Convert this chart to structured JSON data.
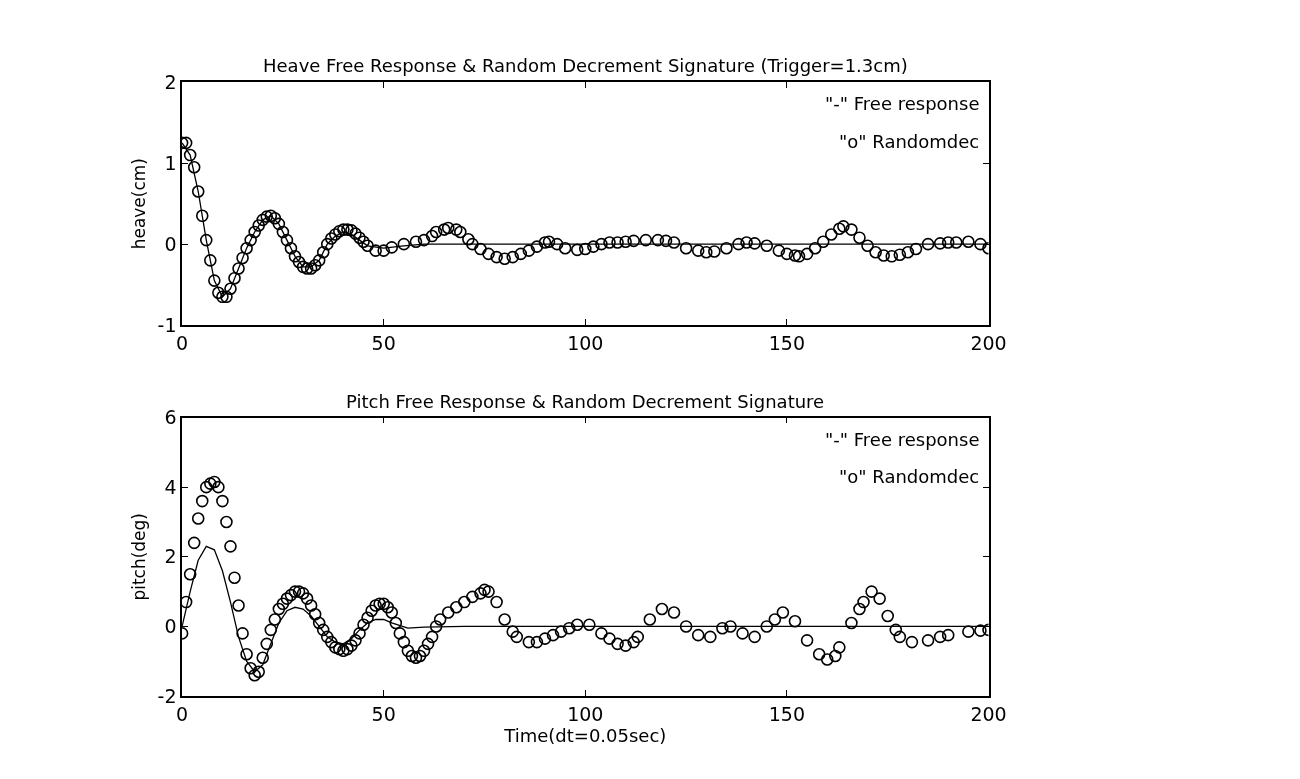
{
  "chart_data": [
    {
      "type": "line",
      "title": "Heave Free Response & Random Decrement Signature (Trigger=1.3cm)",
      "ylabel": "heave(cm)",
      "xlim": [
        0,
        200
      ],
      "ylim": [
        -1,
        2
      ],
      "xticks": [
        0,
        50,
        100,
        150,
        200
      ],
      "yticks": [
        -1,
        0,
        1,
        2
      ],
      "annotations": [
        "\"-\" Free response",
        "\"o\" Randomdec"
      ],
      "series": [
        {
          "color": "#000000",
          "marker": "none",
          "line_style": "solid",
          "x": [
            0,
            2,
            4,
            6,
            8,
            10,
            12,
            14,
            16,
            18,
            20,
            22,
            24,
            26,
            28,
            30,
            32,
            34,
            36,
            38,
            40,
            42,
            44,
            46,
            50,
            55,
            60,
            80,
            100,
            150,
            200
          ],
          "values": [
            1.25,
            1.1,
            0.65,
            0.05,
            -0.45,
            -0.65,
            -0.55,
            -0.3,
            -0.05,
            0.15,
            0.3,
            0.35,
            0.25,
            0.05,
            -0.15,
            -0.28,
            -0.28,
            -0.2,
            0,
            0.1,
            0.15,
            0.12,
            0.05,
            -0.02,
            -0.05,
            -0.02,
            0,
            0,
            0,
            0,
            0
          ]
        },
        {
          "type": "scatter",
          "color": "#000000",
          "marker": "circle",
          "x": [
            0,
            1,
            2,
            3,
            4,
            5,
            6,
            7,
            8,
            9,
            10,
            11,
            12,
            13,
            14,
            15,
            16,
            17,
            18,
            19,
            20,
            21,
            22,
            23,
            24,
            25,
            26,
            27,
            28,
            29,
            30,
            31,
            32,
            33,
            34,
            35,
            36,
            37,
            38,
            39,
            40,
            41,
            42,
            43,
            44,
            45,
            46,
            48,
            50,
            52,
            55,
            58,
            60,
            62,
            63,
            65,
            66,
            68,
            69,
            71,
            72,
            74,
            76,
            78,
            80,
            82,
            84,
            86,
            88,
            90,
            91,
            93,
            95,
            98,
            100,
            102,
            104,
            106,
            108,
            110,
            112,
            115,
            118,
            120,
            122,
            125,
            128,
            130,
            132,
            135,
            138,
            140,
            142,
            145,
            148,
            150,
            152,
            153,
            155,
            157,
            159,
            161,
            163,
            164,
            166,
            168,
            170,
            172,
            174,
            176,
            178,
            180,
            182,
            185,
            188,
            190,
            192,
            195,
            198,
            200
          ],
          "values": [
            1.25,
            1.25,
            1.1,
            0.95,
            0.65,
            0.35,
            0.05,
            -0.2,
            -0.45,
            -0.6,
            -0.65,
            -0.65,
            -0.55,
            -0.42,
            -0.3,
            -0.17,
            -0.05,
            0.05,
            0.15,
            0.23,
            0.3,
            0.34,
            0.35,
            0.32,
            0.25,
            0.15,
            0.05,
            -0.05,
            -0.15,
            -0.22,
            -0.28,
            -0.3,
            -0.3,
            -0.26,
            -0.2,
            -0.1,
            0,
            0.07,
            0.12,
            0.16,
            0.18,
            0.18,
            0.17,
            0.13,
            0.08,
            0.03,
            -0.02,
            -0.08,
            -0.08,
            -0.04,
            0,
            0.03,
            0.05,
            0.1,
            0.15,
            0.18,
            0.2,
            0.18,
            0.15,
            0.06,
            0,
            -0.06,
            -0.12,
            -0.16,
            -0.18,
            -0.16,
            -0.12,
            -0.08,
            -0.03,
            0.02,
            0.03,
            0,
            -0.05,
            -0.07,
            -0.06,
            -0.03,
            0,
            0.02,
            0.02,
            0.03,
            0.04,
            0.05,
            0.05,
            0.04,
            0.02,
            -0.05,
            -0.08,
            -0.1,
            -0.09,
            -0.05,
            0,
            0.02,
            0.01,
            -0.02,
            -0.08,
            -0.12,
            -0.14,
            -0.15,
            -0.12,
            -0.05,
            0.03,
            0.12,
            0.19,
            0.22,
            0.18,
            0.08,
            -0.02,
            -0.1,
            -0.14,
            -0.15,
            -0.13,
            -0.1,
            -0.06,
            0,
            0.01,
            0.02,
            0.02,
            0.03,
            0,
            -0.05
          ]
        }
      ]
    },
    {
      "type": "line",
      "title": "Pitch Free Response & Random Decrement Signature",
      "xlabel": "Time(dt=0.05sec)",
      "ylabel": "pitch(deg)",
      "xlim": [
        0,
        200
      ],
      "ylim": [
        -2,
        6
      ],
      "xticks": [
        0,
        50,
        100,
        150,
        200
      ],
      "yticks": [
        -2,
        0,
        2,
        4,
        6
      ],
      "annotations": [
        "\"-\" Free response",
        "\"o\" Randomdec"
      ],
      "series": [
        {
          "color": "#000000",
          "marker": "none",
          "line_style": "solid",
          "x": [
            0,
            2,
            4,
            6,
            8,
            10,
            12,
            14,
            16,
            18,
            20,
            22,
            24,
            26,
            28,
            30,
            32,
            34,
            36,
            38,
            40,
            42,
            44,
            46,
            48,
            50,
            52,
            56,
            60,
            70,
            100,
            150,
            200
          ],
          "values": [
            0,
            1.0,
            1.9,
            2.3,
            2.2,
            1.6,
            0.7,
            -0.3,
            -1.0,
            -1.3,
            -1.1,
            -0.5,
            0.1,
            0.45,
            0.55,
            0.5,
            0.3,
            0,
            -0.3,
            -0.45,
            -0.5,
            -0.35,
            -0.1,
            0.1,
            0.2,
            0.2,
            0.1,
            -0.05,
            -0.02,
            0,
            0,
            0,
            0
          ]
        },
        {
          "type": "scatter",
          "color": "#000000",
          "marker": "circle",
          "x": [
            0,
            1,
            2,
            3,
            4,
            5,
            6,
            7,
            8,
            9,
            10,
            11,
            12,
            13,
            14,
            15,
            16,
            17,
            18,
            19,
            20,
            21,
            22,
            23,
            24,
            25,
            26,
            27,
            28,
            29,
            30,
            31,
            32,
            33,
            34,
            35,
            36,
            37,
            38,
            39,
            40,
            41,
            42,
            43,
            44,
            45,
            46,
            47,
            48,
            49,
            50,
            51,
            52,
            53,
            54,
            55,
            56,
            57,
            58,
            59,
            60,
            61,
            62,
            63,
            64,
            66,
            68,
            70,
            72,
            74,
            75,
            76,
            78,
            80,
            82,
            83,
            86,
            88,
            90,
            92,
            94,
            96,
            98,
            101,
            104,
            106,
            108,
            110,
            112,
            113,
            116,
            119,
            122,
            125,
            128,
            131,
            134,
            136,
            139,
            142,
            145,
            147,
            149,
            152,
            155,
            158,
            160,
            162,
            163,
            166,
            168,
            169,
            171,
            173,
            175,
            177,
            178,
            181,
            185,
            188,
            190,
            195,
            198,
            200
          ],
          "values": [
            -0.2,
            0.7,
            1.5,
            2.4,
            3.1,
            3.6,
            4.0,
            4.1,
            4.15,
            4.0,
            3.6,
            3.0,
            2.3,
            1.4,
            0.6,
            -0.2,
            -0.8,
            -1.2,
            -1.4,
            -1.3,
            -0.9,
            -0.5,
            -0.1,
            0.2,
            0.5,
            0.65,
            0.8,
            0.9,
            1.0,
            1.0,
            0.95,
            0.8,
            0.6,
            0.35,
            0.1,
            -0.1,
            -0.3,
            -0.45,
            -0.6,
            -0.65,
            -0.7,
            -0.65,
            -0.55,
            -0.4,
            -0.2,
            0.05,
            0.25,
            0.45,
            0.6,
            0.65,
            0.65,
            0.55,
            0.4,
            0.1,
            -0.2,
            -0.45,
            -0.7,
            -0.85,
            -0.9,
            -0.85,
            -0.7,
            -0.5,
            -0.3,
            0,
            0.2,
            0.4,
            0.55,
            0.7,
            0.85,
            0.95,
            1.05,
            1.0,
            0.7,
            0.2,
            -0.15,
            -0.3,
            -0.45,
            -0.45,
            -0.35,
            -0.25,
            -0.15,
            -0.05,
            0.05,
            0.05,
            -0.2,
            -0.35,
            -0.5,
            -0.55,
            -0.45,
            -0.3,
            0.2,
            0.5,
            0.4,
            0,
            -0.25,
            -0.3,
            -0.05,
            0,
            -0.2,
            -0.3,
            0,
            0.2,
            0.4,
            0.15,
            -0.4,
            -0.8,
            -0.95,
            -0.85,
            -0.6,
            0.1,
            0.5,
            0.7,
            1.0,
            0.8,
            0.3,
            -0.1,
            -0.3,
            -0.45,
            -0.4,
            -0.3,
            -0.25,
            -0.15,
            -0.12,
            -0.1
          ]
        }
      ]
    }
  ]
}
